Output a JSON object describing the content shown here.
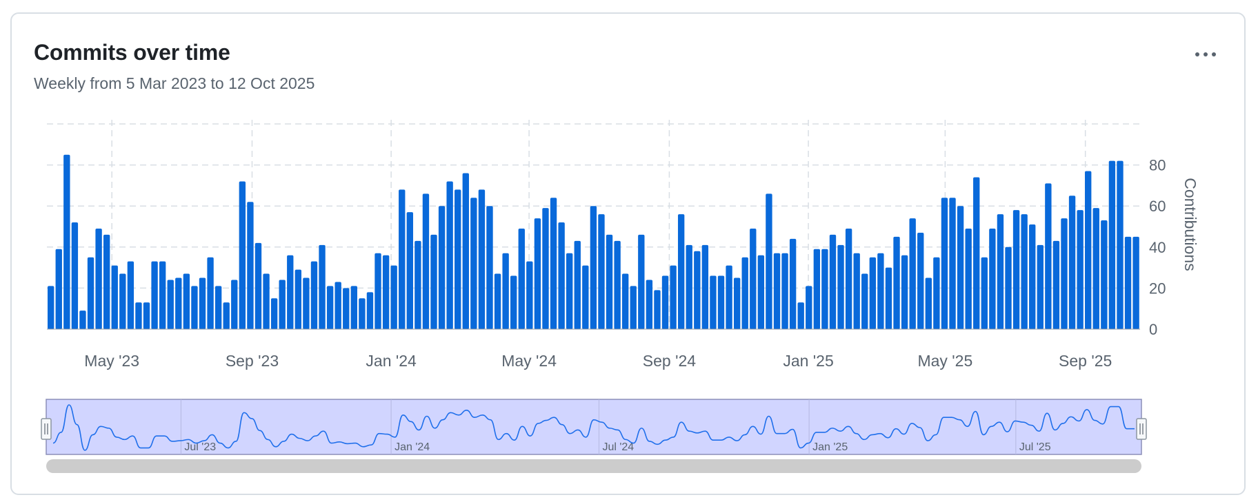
{
  "card": {
    "title": "Commits over time",
    "subtitle": "Weekly from 5 Mar 2023 to 12 Oct 2025",
    "menu_icon": "kebab-horizontal-icon"
  },
  "colors": {
    "bar": "#0969da",
    "navigator_fill": "#d1d5ff",
    "navigator_line": "#1f6feb",
    "scrollbar": "#cccccc",
    "grid": "#d8dee4"
  },
  "chart_data": {
    "type": "bar",
    "title": "Commits over time",
    "subtitle": "Weekly from 5 Mar 2023 to 12 Oct 2025",
    "xlabel": "",
    "ylabel": "Contributions",
    "ylim": [
      0,
      100
    ],
    "yticks": [
      0,
      20,
      40,
      60,
      80
    ],
    "xticks": [
      {
        "date": "2023-05-01",
        "label": "May '23"
      },
      {
        "date": "2023-09-01",
        "label": "Sep '23"
      },
      {
        "date": "2024-01-01",
        "label": "Jan '24"
      },
      {
        "date": "2024-05-01",
        "label": "May '24"
      },
      {
        "date": "2024-09-01",
        "label": "Sep '24"
      },
      {
        "date": "2025-01-01",
        "label": "Jan '25"
      },
      {
        "date": "2025-05-01",
        "label": "May '25"
      },
      {
        "date": "2025-09-01",
        "label": "Sep '25"
      }
    ],
    "grid": true,
    "legend": "none",
    "start": "2023-03-05",
    "end": "2025-10-12",
    "series": [
      {
        "values": [
          21,
          39,
          85,
          52,
          9,
          35,
          49,
          46,
          31,
          27,
          33,
          13,
          13,
          33,
          33,
          24,
          25,
          27,
          21,
          25,
          35,
          21,
          13,
          24,
          72,
          62,
          42,
          27,
          15,
          24,
          36,
          29,
          25,
          33,
          41,
          21,
          23,
          20,
          21,
          15,
          18,
          37,
          36,
          31,
          68,
          57,
          43,
          66,
          46,
          60,
          72,
          68,
          76,
          64,
          68,
          60,
          27,
          37,
          26,
          49,
          33,
          54,
          59,
          64,
          52,
          37,
          43,
          31,
          60,
          56,
          46,
          43,
          27,
          21,
          46,
          24,
          19,
          26,
          31,
          56,
          41,
          38,
          41,
          26,
          26,
          31,
          25,
          35,
          49,
          36,
          66,
          37,
          37,
          44,
          13,
          21,
          39,
          39,
          46,
          41,
          49,
          37,
          27,
          35,
          37,
          30,
          45,
          36,
          54,
          47,
          25,
          35,
          64,
          64,
          60,
          49,
          74,
          35,
          49,
          56,
          40,
          58,
          56,
          51,
          41,
          71,
          43,
          54,
          65,
          58,
          77,
          59,
          53,
          82,
          82,
          45,
          45
        ]
      }
    ],
    "navigator": {
      "tick_labels": [
        "Jul '23",
        "Jan '24",
        "Jul '24",
        "Jan '25",
        "Jul '25"
      ],
      "tick_dates": [
        "2023-07-01",
        "2024-01-01",
        "2024-07-01",
        "2025-01-01",
        "2025-07-01"
      ]
    }
  }
}
